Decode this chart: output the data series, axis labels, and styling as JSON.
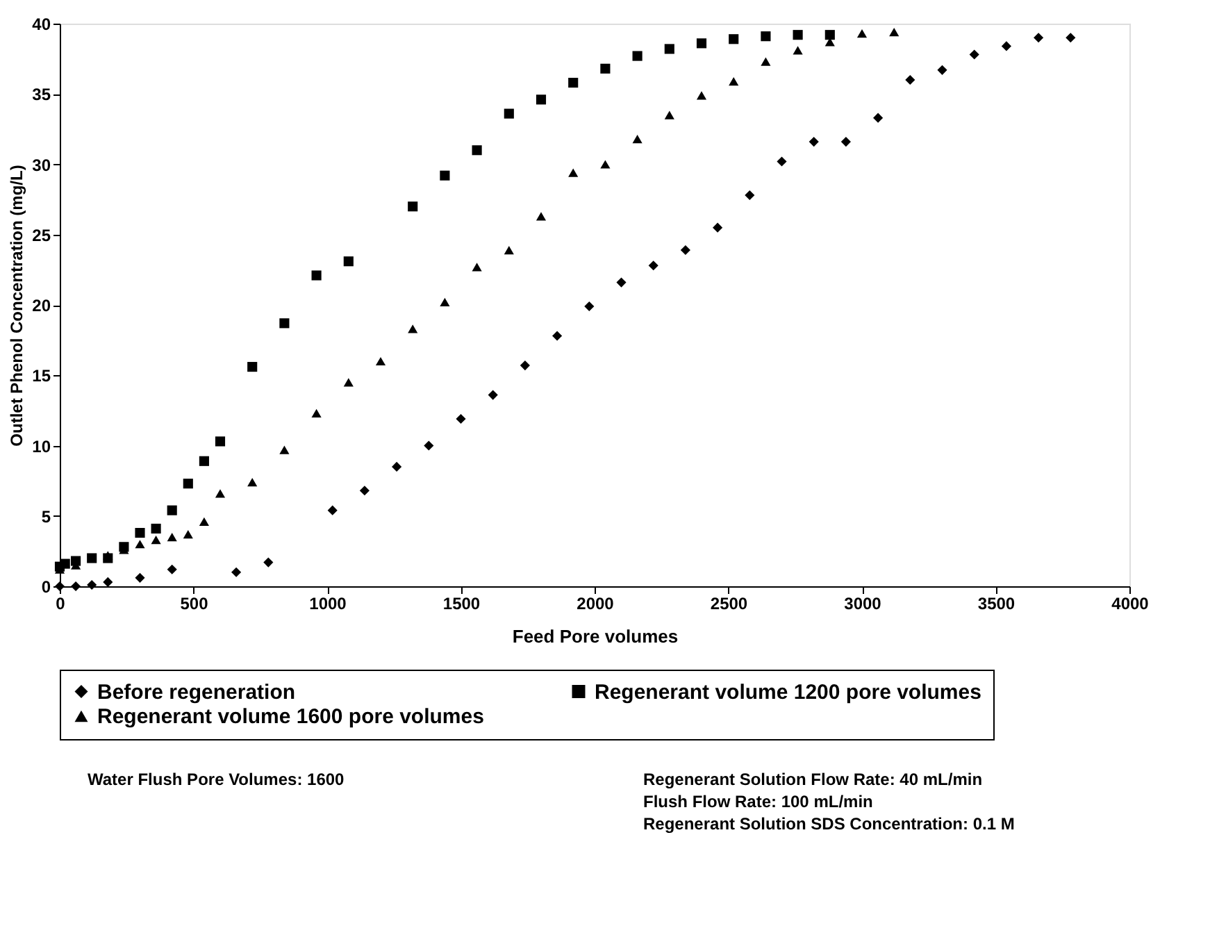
{
  "chart_data": {
    "type": "scatter",
    "xlabel": "Feed Pore volumes",
    "ylabel": "Outlet Phenol Concentration (mg/L)",
    "xlim": [
      0,
      4000
    ],
    "xticks": [
      0,
      500,
      1000,
      1500,
      2000,
      2500,
      3000,
      3500,
      4000
    ],
    "ylim": [
      0,
      40
    ],
    "yticks": [
      0,
      5,
      10,
      15,
      20,
      25,
      30,
      35,
      40
    ],
    "grid": false,
    "legend": "bottom",
    "series": [
      {
        "name": "Before regeneration",
        "color": "#000000",
        "marker": "diamond",
        "x": [
          0,
          60,
          120,
          180,
          300,
          420,
          660,
          780,
          1020,
          1140,
          1260,
          1380,
          1500,
          1620,
          1740,
          1860,
          1980,
          2100,
          2220,
          2340,
          2460,
          2580,
          2700,
          2820,
          2940,
          3060,
          3180,
          3300,
          3420,
          3540,
          3660,
          3780
        ],
        "values": [
          0,
          0,
          0.1,
          0.3,
          0.6,
          1.2,
          1.0,
          1.7,
          5.4,
          6.8,
          8.5,
          10.0,
          11.9,
          13.6,
          15.7,
          17.8,
          19.9,
          21.6,
          22.8,
          23.9,
          25.5,
          27.8,
          30.2,
          31.6,
          31.6,
          33.3,
          36.0,
          36.7,
          37.8,
          38.4,
          39.0,
          39.0
        ]
      },
      {
        "name": "Regenerant volume 1200 pore volumes",
        "color": "#000000",
        "marker": "square",
        "x": [
          0,
          20,
          60,
          120,
          180,
          240,
          300,
          360,
          420,
          480,
          540,
          600,
          720,
          840,
          960,
          1080,
          1320,
          1440,
          1560,
          1680,
          1800,
          1920,
          2040,
          2160,
          2280,
          2400,
          2520,
          2640,
          2760,
          2880
        ],
        "values": [
          1.4,
          1.6,
          1.8,
          2.0,
          2.0,
          2.8,
          3.8,
          4.1,
          5.4,
          7.3,
          8.9,
          10.3,
          15.6,
          18.7,
          22.1,
          23.1,
          27.0,
          29.2,
          31.0,
          33.6,
          34.6,
          35.8,
          36.8,
          37.7,
          38.2,
          38.6,
          38.9,
          39.1,
          39.2,
          39.2
        ]
      },
      {
        "name": "Regenerant volume 1600 pore volumes",
        "color": "#000000",
        "marker": "triangle",
        "x": [
          0,
          60,
          180,
          240,
          300,
          360,
          420,
          480,
          540,
          600,
          720,
          840,
          960,
          1080,
          1200,
          1320,
          1440,
          1560,
          1680,
          1800,
          1920,
          2040,
          2160,
          2280,
          2400,
          2520,
          2640,
          2760,
          2880,
          3000,
          3120
        ],
        "values": [
          1.2,
          1.5,
          2.2,
          2.6,
          3.0,
          3.3,
          3.5,
          3.7,
          4.6,
          6.6,
          7.4,
          9.7,
          12.3,
          14.5,
          16.0,
          18.3,
          20.2,
          22.7,
          23.9,
          26.3,
          29.4,
          30.0,
          31.8,
          33.5,
          34.9,
          35.9,
          37.3,
          38.1,
          38.7,
          39.3,
          39.4
        ]
      }
    ],
    "annotations": [
      "Water Flush Pore Volumes: 1600",
      "Regenerant Solution Flow Rate: 40 mL/min",
      "Flush Flow Rate: 100 mL/min",
      "Regenerant Solution SDS Concentration: 0.1 M"
    ]
  }
}
